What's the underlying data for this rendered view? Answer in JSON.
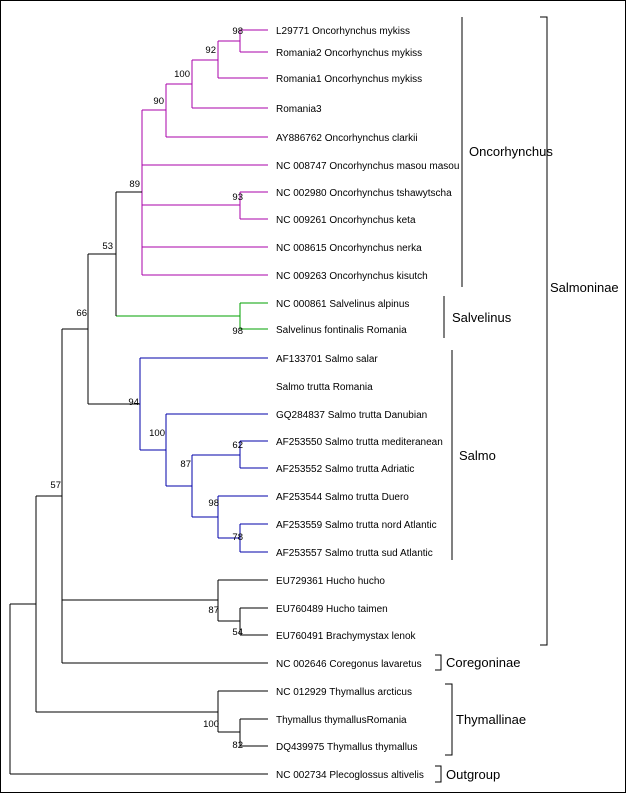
{
  "tree": {
    "leaves": [
      "L29771 Oncorhynchus mykiss",
      "Romania2 Oncorhynchus mykiss",
      "Romania1 Oncorhynchus mykiss",
      "Romania3",
      "AY886762 Oncorhynchus clarkii",
      "NC 008747 Oncorhynchus masou masou",
      "NC 002980 Oncorhynchus tshawytscha",
      "NC 009261 Oncorhynchus keta",
      "NC 008615 Oncorhynchus nerka",
      "NC 009263 Oncorhynchus kisutch",
      "NC 000861 Salvelinus alpinus",
      "Salvelinus fontinalis Romania",
      "AF133701 Salmo salar",
      "Salmo trutta  Romania",
      "GQ284837 Salmo trutta Danubian",
      "AF253550 Salmo trutta mediteranean",
      "AF253552 Salmo trutta Adriatic",
      "AF253544 Salmo trutta Duero",
      "AF253559 Salmo trutta nord Atlantic",
      "AF253557 Salmo trutta sud Atlantic",
      "EU729361 Hucho hucho",
      "EU760489 Hucho taimen",
      "EU760491 Brachymystax lenok",
      "NC 002646 Coregonus lavaretus",
      "NC 012929 Thymallus arcticus",
      "Thymallus thymallusRomania",
      "DQ439975 Thymallus thymallus",
      "NC 002734 Plecoglossus altivelis"
    ],
    "bootstrap": [
      "98",
      "92",
      "100",
      "90",
      "93",
      "89",
      "53",
      "98",
      "62",
      "78",
      "98",
      "87",
      "100",
      "94",
      "66",
      "54",
      "87",
      "57",
      "82",
      "100"
    ],
    "clades": {
      "oncorhynchus": "Oncorhynchus",
      "salvelinus": "Salvelinus",
      "salmo": "Salmo",
      "salmoninae": "Salmoninae",
      "coregoninae": "Coregoninae",
      "thymallinae": "Thymallinae",
      "outgroup": "Outgroup"
    },
    "colors": {
      "oncorhynchus": "#aa00aa",
      "salvelinus": "#00a000",
      "salmo": "#0000aa",
      "default": "#000000"
    }
  }
}
